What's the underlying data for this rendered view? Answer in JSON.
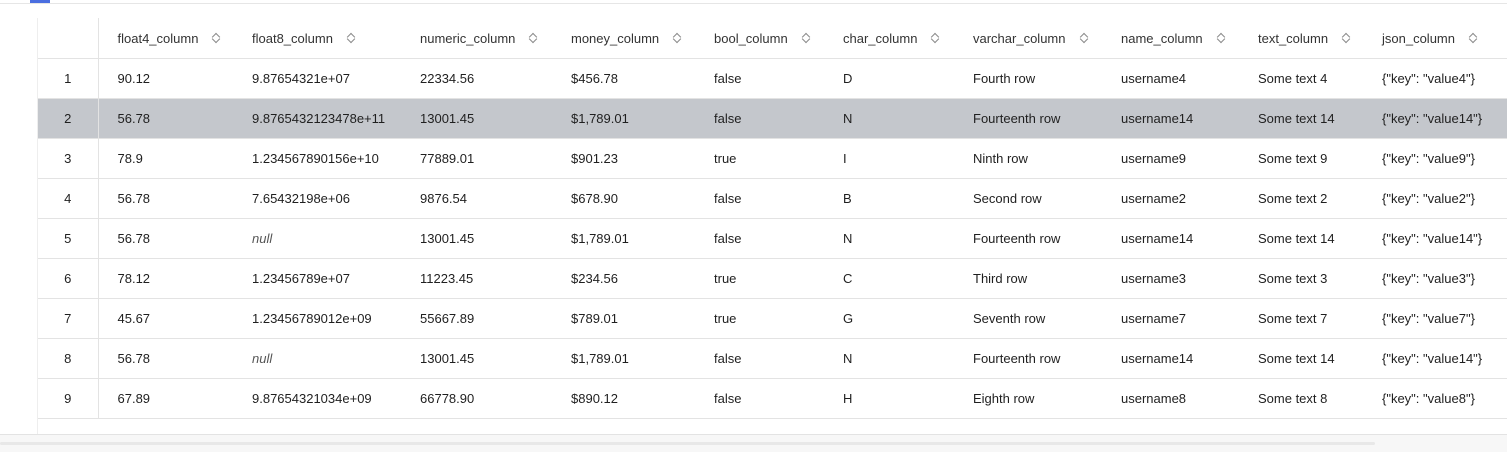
{
  "columns": [
    {
      "label": ""
    },
    {
      "label": "float4_column"
    },
    {
      "label": "float8_column"
    },
    {
      "label": "numeric_column"
    },
    {
      "label": "money_column"
    },
    {
      "label": "bool_column"
    },
    {
      "label": "char_column"
    },
    {
      "label": "varchar_column"
    },
    {
      "label": "name_column"
    },
    {
      "label": "text_column"
    },
    {
      "label": "json_column"
    }
  ],
  "rows": [
    {
      "num": "1",
      "float4": "90.12",
      "float8": "9.87654321e+07",
      "numeric": "22334.56",
      "money": "$456.78",
      "bool": "false",
      "char": "D",
      "varchar": "Fourth row",
      "name": "username4",
      "text": "Some text 4",
      "json": "{\"key\": \"value4\"}"
    },
    {
      "num": "2",
      "float4": "56.78",
      "float8": "9.8765432123478e+11",
      "numeric": "13001.45",
      "money": "$1,789.01",
      "bool": "false",
      "char": "N",
      "varchar": "Fourteenth row",
      "name": "username14",
      "text": "Some text 14",
      "json": "{\"key\": \"value14\"}"
    },
    {
      "num": "3",
      "float4": "78.9",
      "float8": "1.234567890156e+10",
      "numeric": "77889.01",
      "money": "$901.23",
      "bool": "true",
      "char": "I",
      "varchar": "Ninth row",
      "name": "username9",
      "text": "Some text 9",
      "json": "{\"key\": \"value9\"}"
    },
    {
      "num": "4",
      "float4": "56.78",
      "float8": "7.65432198e+06",
      "numeric": "9876.54",
      "money": "$678.90",
      "bool": "false",
      "char": "B",
      "varchar": "Second row",
      "name": "username2",
      "text": "Some text 2",
      "json": "{\"key\": \"value2\"}"
    },
    {
      "num": "5",
      "float4": "56.78",
      "float8": "null",
      "numeric": "13001.45",
      "money": "$1,789.01",
      "bool": "false",
      "char": "N",
      "varchar": "Fourteenth row",
      "name": "username14",
      "text": "Some text 14",
      "json": "{\"key\": \"value14\"}"
    },
    {
      "num": "6",
      "float4": "78.12",
      "float8": "1.23456789e+07",
      "numeric": "11223.45",
      "money": "$234.56",
      "bool": "true",
      "char": "C",
      "varchar": "Third row",
      "name": "username3",
      "text": "Some text 3",
      "json": "{\"key\": \"value3\"}"
    },
    {
      "num": "7",
      "float4": "45.67",
      "float8": "1.23456789012e+09",
      "numeric": "55667.89",
      "money": "$789.01",
      "bool": "true",
      "char": "G",
      "varchar": "Seventh row",
      "name": "username7",
      "text": "Some text 7",
      "json": "{\"key\": \"value7\"}"
    },
    {
      "num": "8",
      "float4": "56.78",
      "float8": "null",
      "numeric": "13001.45",
      "money": "$1,789.01",
      "bool": "false",
      "char": "N",
      "varchar": "Fourteenth row",
      "name": "username14",
      "text": "Some text 14",
      "json": "{\"key\": \"value14\"}"
    },
    {
      "num": "9",
      "float4": "67.89",
      "float8": "9.87654321034e+09",
      "numeric": "66778.90",
      "money": "$890.12",
      "bool": "false",
      "char": "H",
      "varchar": "Eighth row",
      "name": "username8",
      "text": "Some text 8",
      "json": "{\"key\": \"value8\"}"
    }
  ],
  "selected_row": "2",
  "null_value": "null"
}
